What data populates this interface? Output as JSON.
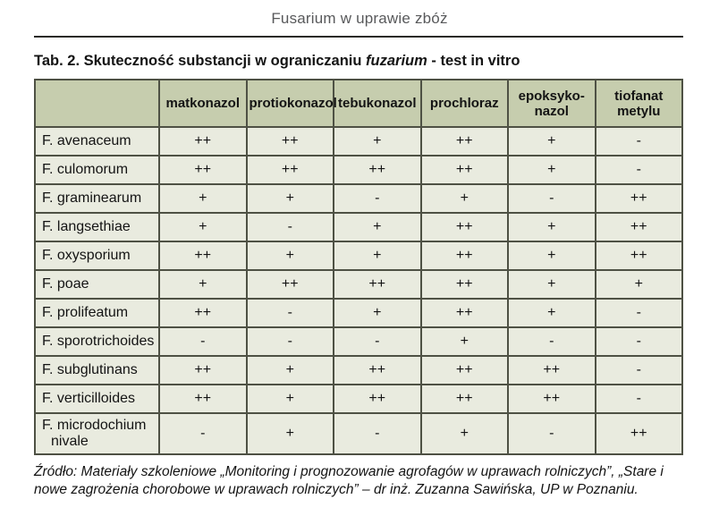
{
  "page": {
    "running_header": "Fusarium w uprawie zbóż"
  },
  "caption": {
    "prefix": "Tab. 2. Skuteczność substancji w ograniczaniu ",
    "italic": "fuzarium",
    "suffix": " - test in vitro"
  },
  "table": {
    "columns": [
      "",
      "matkonazol",
      "protiokonazol",
      "tebukonazol",
      "prochloraz",
      "epoksyko-nazol",
      "tiofanat metylu"
    ],
    "rating_legend": {
      "strong": "++",
      "moderate": "+",
      "none": "-"
    },
    "rows": [
      {
        "species": "F. avenaceum",
        "values": [
          "++",
          "++",
          "+",
          "++",
          "+",
          "-"
        ]
      },
      {
        "species": "F. culomorum",
        "values": [
          "++",
          "++",
          "++",
          "++",
          "+",
          "-"
        ]
      },
      {
        "species": "F. graminearum",
        "values": [
          "+",
          "+",
          "-",
          "+",
          "-",
          "++"
        ]
      },
      {
        "species": "F. langsethiae",
        "values": [
          "+",
          "-",
          "+",
          "++",
          "+",
          "++"
        ]
      },
      {
        "species": "F. oxysporium",
        "values": [
          "++",
          "+",
          "+",
          "++",
          "+",
          "++"
        ]
      },
      {
        "species": "F. poae",
        "values": [
          "+",
          "++",
          "++",
          "++",
          "+",
          "+"
        ]
      },
      {
        "species": "F. prolifeatum",
        "values": [
          "++",
          "-",
          "+",
          "++",
          "+",
          "-"
        ]
      },
      {
        "species": "F. sporotrichoides",
        "values": [
          "-",
          "-",
          "-",
          "+",
          "-",
          "-"
        ]
      },
      {
        "species": "F. subglutinans",
        "values": [
          "++",
          "+",
          "++",
          "++",
          "++",
          "-"
        ]
      },
      {
        "species": "F. verticilloides",
        "values": [
          "++",
          "+",
          "++",
          "++",
          "++",
          "-"
        ]
      },
      {
        "species": "F. microdochium nivale",
        "values": [
          "-",
          "+",
          "-",
          "+",
          "-",
          "++"
        ]
      }
    ]
  },
  "source": {
    "text": "Źródło: Materiały szkoleniowe „Monitoring i prognozowanie agrofagów w uprawach rolniczych”, „Stare i nowe zagrożenia chorobowe w uprawach rolniczych” – dr inż. Zuzanna Sawińska, UP w Poznaniu."
  },
  "colors": {
    "header_bg": "#c6cdae",
    "body_bg": "#e9ebdf",
    "border": "#4e5144",
    "running_header_text": "#58595b"
  }
}
